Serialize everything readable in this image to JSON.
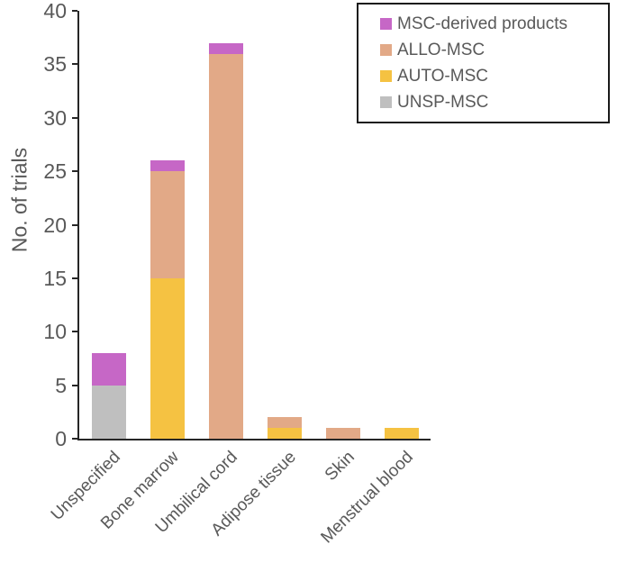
{
  "figure": {
    "ylabel": "No. of trials"
  },
  "colors": {
    "axis": "#262626",
    "text": "#595959",
    "legend_border": "#1a1a1a",
    "background": "#ffffff"
  },
  "chart_data": {
    "type": "bar",
    "stacked": true,
    "title": "",
    "xlabel": "",
    "ylabel": "No. of trials",
    "ylim": [
      0,
      40
    ],
    "yticks": [
      0,
      5,
      10,
      15,
      20,
      25,
      30,
      35,
      40
    ],
    "grid": false,
    "categories": [
      "Unspecified",
      "Bone marrow",
      "Umbilical cord",
      "Adipose tissue",
      "Skin",
      "Menstrual blood"
    ],
    "series": [
      {
        "name": "UNSP-MSC",
        "color": "#BFBFBF",
        "values": [
          5,
          0,
          0,
          0,
          0,
          0
        ]
      },
      {
        "name": "AUTO-MSC",
        "color": "#F5C242",
        "values": [
          0,
          15,
          0,
          1,
          0,
          1
        ]
      },
      {
        "name": "ALLO-MSC",
        "color": "#E2A987",
        "values": [
          0,
          10,
          36,
          1,
          1,
          0
        ]
      },
      {
        "name": "MSC-derived products",
        "color": "#C667C6",
        "values": [
          3,
          1,
          1,
          0,
          0,
          0
        ]
      }
    ],
    "totals": [
      8,
      26,
      37,
      2,
      1,
      1
    ],
    "legend": {
      "position": "top-right",
      "entries": [
        {
          "label": "MSC-derived products",
          "color": "#C667C6"
        },
        {
          "label": "ALLO-MSC",
          "color": "#E2A987"
        },
        {
          "label": "AUTO-MSC",
          "color": "#F5C242"
        },
        {
          "label": "UNSP-MSC",
          "color": "#BFBFBF"
        }
      ]
    }
  }
}
